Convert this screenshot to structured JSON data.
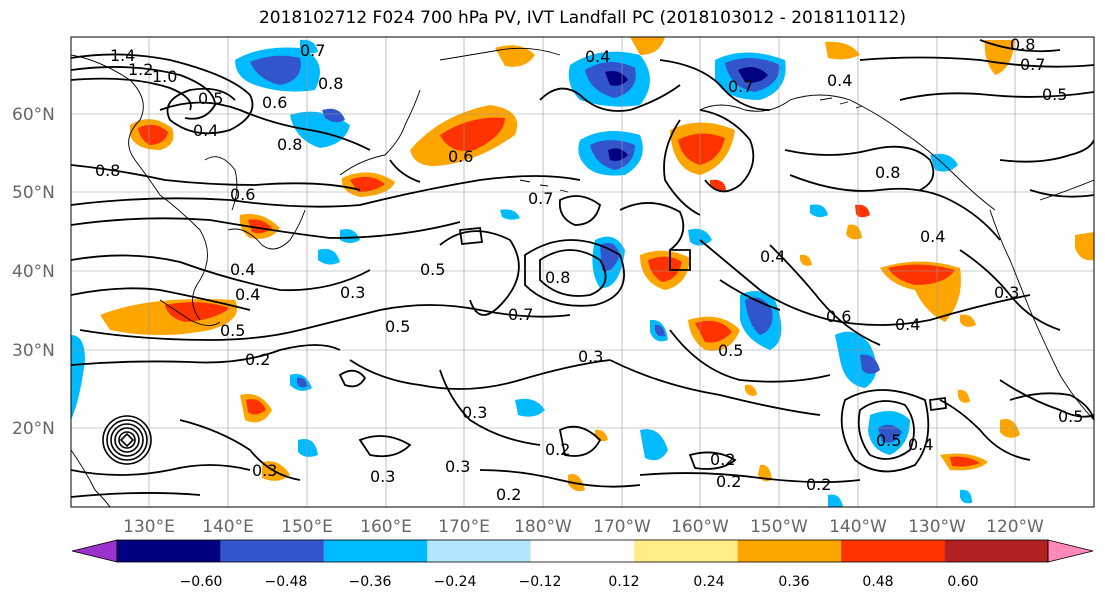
{
  "title": "2018102712 F024 700 hPa PV, IVT Landfall PC (2018103012 - 2018110112)",
  "map": {
    "lat_labels": [
      "60°N",
      "50°N",
      "40°N",
      "30°N",
      "20°N"
    ],
    "lon_labels": [
      "130°E",
      "140°E",
      "150°E",
      "160°E",
      "170°E",
      "180°W",
      "170°W",
      "160°W",
      "150°W",
      "140°W",
      "130°W",
      "120°W"
    ],
    "contour_labels": [
      "1.4",
      "1.2",
      "1.0",
      "0.7",
      "0.8",
      "0.5",
      "0.6",
      "0.4",
      "0.8",
      "0.8",
      "0.6",
      "0.4",
      "0.5",
      "0.3",
      "0.6",
      "0.7",
      "0.8",
      "0.7",
      "0.4",
      "0.3",
      "0.5",
      "0.2",
      "0.3",
      "0.5",
      "0.7",
      "0.8",
      "0.4",
      "0.5",
      "0.3",
      "0.2",
      "0.2",
      "0.3",
      "0.2",
      "0.2",
      "0.2",
      "0.3",
      "0.4",
      "0.5",
      "0.6",
      "0.4",
      "0.5",
      "0.4",
      "0.5",
      "0.8",
      "0.7",
      "0.4",
      "0.4",
      "0.3"
    ]
  },
  "colorbar": {
    "ticks": [
      "−0.60",
      "−0.48",
      "−0.36",
      "−0.24",
      "−0.12",
      "0.12",
      "0.24",
      "0.36",
      "0.48",
      "0.60"
    ],
    "colors": [
      "#9933cc",
      "#000080",
      "#3355cc",
      "#00bbff",
      "#b3e5ff",
      "#ffffff",
      "#ffee88",
      "#ffa500",
      "#ff3300",
      "#b22222",
      "#ff88bb"
    ]
  }
}
